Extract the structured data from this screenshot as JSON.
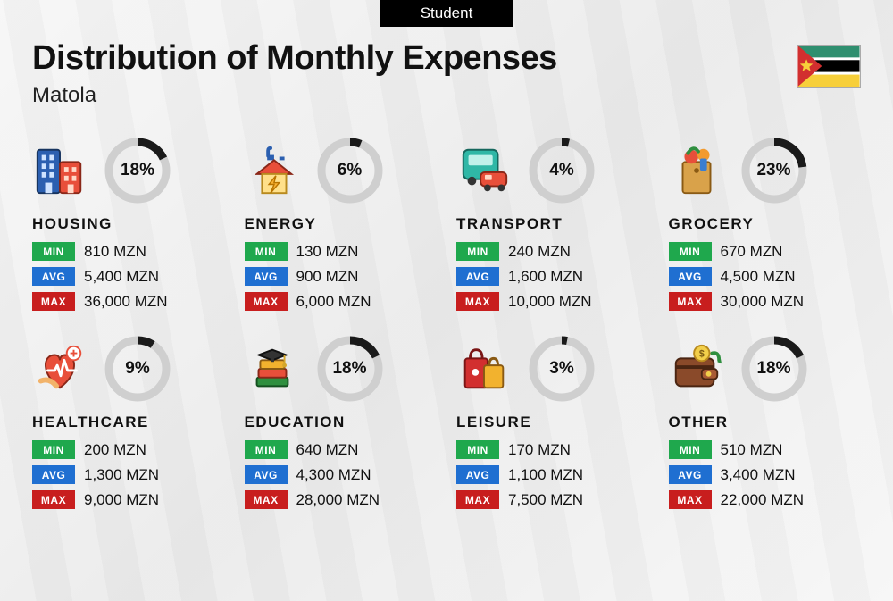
{
  "badge": "Student",
  "title": "Distribution of Monthly Expenses",
  "subtitle": "Matola",
  "currency": "MZN",
  "labels": {
    "min": "MIN",
    "avg": "AVG",
    "max": "MAX"
  },
  "colors": {
    "min_badge": "#1fa84d",
    "avg_badge": "#1f6fd1",
    "max_badge": "#c81e1e",
    "donut_fg": "#1a1a1a",
    "donut_bg": "#cfcfcf",
    "text": "#111111"
  },
  "flag": {
    "stripes": [
      "#2f8f6f",
      "#000000",
      "#f7cf3a"
    ],
    "sep": "#ffffff",
    "triangle": "#d22f2f",
    "star": "#f7cf3a"
  },
  "categories": [
    {
      "key": "housing",
      "name": "HOUSING",
      "pct": 18,
      "min": "810",
      "avg": "5,400",
      "max": "36,000",
      "icon": "buildings"
    },
    {
      "key": "energy",
      "name": "ENERGY",
      "pct": 6,
      "min": "130",
      "avg": "900",
      "max": "6,000",
      "icon": "energy-house"
    },
    {
      "key": "transport",
      "name": "TRANSPORT",
      "pct": 4,
      "min": "240",
      "avg": "1,600",
      "max": "10,000",
      "icon": "bus-car"
    },
    {
      "key": "grocery",
      "name": "GROCERY",
      "pct": 23,
      "min": "670",
      "avg": "4,500",
      "max": "30,000",
      "icon": "grocery-bag"
    },
    {
      "key": "healthcare",
      "name": "HEALTHCARE",
      "pct": 9,
      "min": "200",
      "avg": "1,300",
      "max": "9,000",
      "icon": "health-heart"
    },
    {
      "key": "education",
      "name": "EDUCATION",
      "pct": 18,
      "min": "640",
      "avg": "4,300",
      "max": "28,000",
      "icon": "grad-books"
    },
    {
      "key": "leisure",
      "name": "LEISURE",
      "pct": 3,
      "min": "170",
      "avg": "1,100",
      "max": "7,500",
      "icon": "shopping-bags"
    },
    {
      "key": "other",
      "name": "OTHER",
      "pct": 18,
      "min": "510",
      "avg": "3,400",
      "max": "22,000",
      "icon": "wallet"
    }
  ],
  "donut": {
    "radius": 32,
    "stroke": 9
  }
}
